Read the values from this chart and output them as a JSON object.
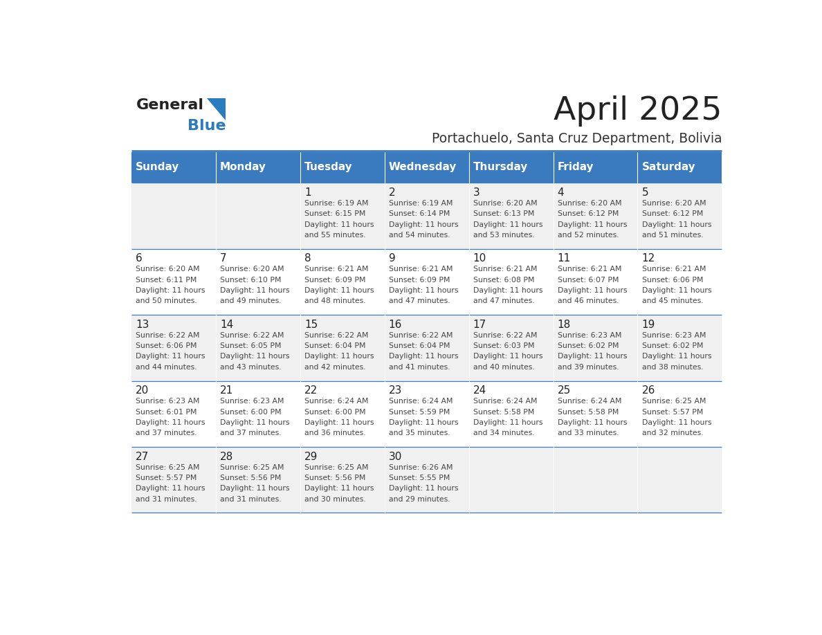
{
  "title": "April 2025",
  "subtitle": "Portachuelo, Santa Cruz Department, Bolivia",
  "days_of_week": [
    "Sunday",
    "Monday",
    "Tuesday",
    "Wednesday",
    "Thursday",
    "Friday",
    "Saturday"
  ],
  "header_bg": "#3a7abf",
  "header_text": "#ffffff",
  "row_bg_odd": "#f0f0f0",
  "row_bg_even": "#ffffff",
  "grid_line_color": "#3a7abf",
  "title_color": "#222222",
  "subtitle_color": "#333333",
  "day_number_color": "#222222",
  "cell_text_color": "#444444",
  "logo_general_color": "#222222",
  "logo_blue_color": "#2b7bbf",
  "logo_triangle_color": "#2b7bbf",
  "calendar_data": [
    [
      null,
      null,
      {
        "day": 1,
        "sunrise": "6:19 AM",
        "sunset": "6:15 PM",
        "daylight": "11 hours and 55 minutes."
      },
      {
        "day": 2,
        "sunrise": "6:19 AM",
        "sunset": "6:14 PM",
        "daylight": "11 hours and 54 minutes."
      },
      {
        "day": 3,
        "sunrise": "6:20 AM",
        "sunset": "6:13 PM",
        "daylight": "11 hours and 53 minutes."
      },
      {
        "day": 4,
        "sunrise": "6:20 AM",
        "sunset": "6:12 PM",
        "daylight": "11 hours and 52 minutes."
      },
      {
        "day": 5,
        "sunrise": "6:20 AM",
        "sunset": "6:12 PM",
        "daylight": "11 hours and 51 minutes."
      }
    ],
    [
      {
        "day": 6,
        "sunrise": "6:20 AM",
        "sunset": "6:11 PM",
        "daylight": "11 hours and 50 minutes."
      },
      {
        "day": 7,
        "sunrise": "6:20 AM",
        "sunset": "6:10 PM",
        "daylight": "11 hours and 49 minutes."
      },
      {
        "day": 8,
        "sunrise": "6:21 AM",
        "sunset": "6:09 PM",
        "daylight": "11 hours and 48 minutes."
      },
      {
        "day": 9,
        "sunrise": "6:21 AM",
        "sunset": "6:09 PM",
        "daylight": "11 hours and 47 minutes."
      },
      {
        "day": 10,
        "sunrise": "6:21 AM",
        "sunset": "6:08 PM",
        "daylight": "11 hours and 47 minutes."
      },
      {
        "day": 11,
        "sunrise": "6:21 AM",
        "sunset": "6:07 PM",
        "daylight": "11 hours and 46 minutes."
      },
      {
        "day": 12,
        "sunrise": "6:21 AM",
        "sunset": "6:06 PM",
        "daylight": "11 hours and 45 minutes."
      }
    ],
    [
      {
        "day": 13,
        "sunrise": "6:22 AM",
        "sunset": "6:06 PM",
        "daylight": "11 hours and 44 minutes."
      },
      {
        "day": 14,
        "sunrise": "6:22 AM",
        "sunset": "6:05 PM",
        "daylight": "11 hours and 43 minutes."
      },
      {
        "day": 15,
        "sunrise": "6:22 AM",
        "sunset": "6:04 PM",
        "daylight": "11 hours and 42 minutes."
      },
      {
        "day": 16,
        "sunrise": "6:22 AM",
        "sunset": "6:04 PM",
        "daylight": "11 hours and 41 minutes."
      },
      {
        "day": 17,
        "sunrise": "6:22 AM",
        "sunset": "6:03 PM",
        "daylight": "11 hours and 40 minutes."
      },
      {
        "day": 18,
        "sunrise": "6:23 AM",
        "sunset": "6:02 PM",
        "daylight": "11 hours and 39 minutes."
      },
      {
        "day": 19,
        "sunrise": "6:23 AM",
        "sunset": "6:02 PM",
        "daylight": "11 hours and 38 minutes."
      }
    ],
    [
      {
        "day": 20,
        "sunrise": "6:23 AM",
        "sunset": "6:01 PM",
        "daylight": "11 hours and 37 minutes."
      },
      {
        "day": 21,
        "sunrise": "6:23 AM",
        "sunset": "6:00 PM",
        "daylight": "11 hours and 37 minutes."
      },
      {
        "day": 22,
        "sunrise": "6:24 AM",
        "sunset": "6:00 PM",
        "daylight": "11 hours and 36 minutes."
      },
      {
        "day": 23,
        "sunrise": "6:24 AM",
        "sunset": "5:59 PM",
        "daylight": "11 hours and 35 minutes."
      },
      {
        "day": 24,
        "sunrise": "6:24 AM",
        "sunset": "5:58 PM",
        "daylight": "11 hours and 34 minutes."
      },
      {
        "day": 25,
        "sunrise": "6:24 AM",
        "sunset": "5:58 PM",
        "daylight": "11 hours and 33 minutes."
      },
      {
        "day": 26,
        "sunrise": "6:25 AM",
        "sunset": "5:57 PM",
        "daylight": "11 hours and 32 minutes."
      }
    ],
    [
      {
        "day": 27,
        "sunrise": "6:25 AM",
        "sunset": "5:57 PM",
        "daylight": "11 hours and 31 minutes."
      },
      {
        "day": 28,
        "sunrise": "6:25 AM",
        "sunset": "5:56 PM",
        "daylight": "11 hours and 31 minutes."
      },
      {
        "day": 29,
        "sunrise": "6:25 AM",
        "sunset": "5:56 PM",
        "daylight": "11 hours and 30 minutes."
      },
      {
        "day": 30,
        "sunrise": "6:26 AM",
        "sunset": "5:55 PM",
        "daylight": "11 hours and 29 minutes."
      },
      null,
      null,
      null
    ]
  ]
}
